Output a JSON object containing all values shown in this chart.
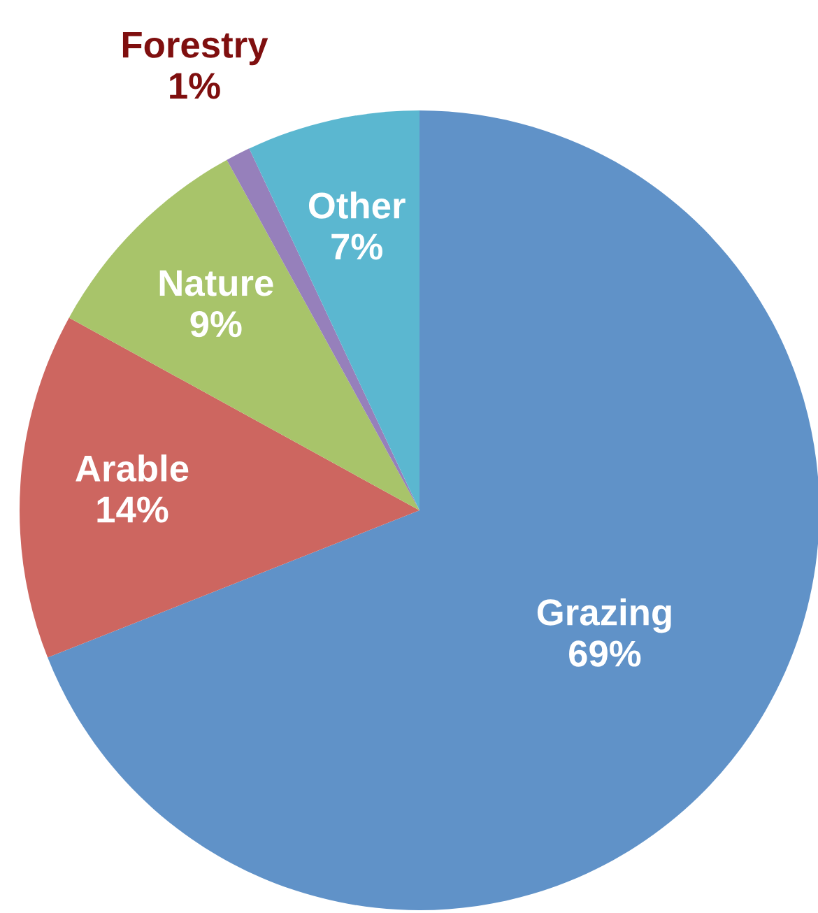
{
  "chart_data": {
    "type": "pie",
    "categories": [
      "Grazing",
      "Arable",
      "Nature",
      "Forestry",
      "Other"
    ],
    "values": [
      69,
      14,
      9,
      1,
      7
    ],
    "colors": [
      "#6092c8",
      "#cd6660",
      "#a8c46a",
      "#9680bb",
      "#5bb7d0"
    ],
    "value_labels": [
      "69%",
      "14%",
      "9%",
      "1%",
      "7%"
    ],
    "legend": false
  }
}
